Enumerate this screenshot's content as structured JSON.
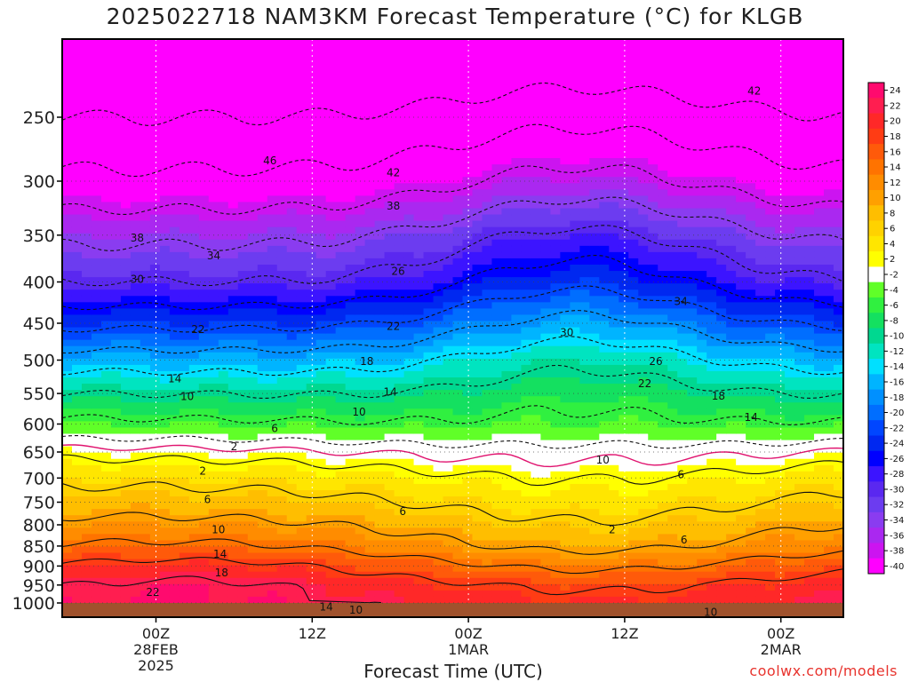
{
  "chart_data": {
    "type": "heatmap",
    "title": "2025022718 NAM3KM Forecast Temperature (°C) for KLGB",
    "xlabel": "Forecast Time (UTC)",
    "ylabel": "",
    "credit": "coolwx.com/models",
    "y_scale": "log",
    "y_axis": {
      "ticks": [
        250,
        300,
        350,
        400,
        450,
        500,
        550,
        600,
        650,
        700,
        750,
        800,
        850,
        900,
        950,
        1000
      ],
      "range": [
        200,
        1000
      ],
      "inverted": true
    },
    "x_axis": {
      "range_hours": [
        -6,
        44
      ],
      "ticks": [
        {
          "hour": 0,
          "lines": [
            "00Z",
            "28FEB",
            "2025"
          ]
        },
        {
          "hour": 10,
          "lines": [
            "12Z"
          ]
        },
        {
          "hour": 20,
          "lines": [
            "00Z",
            "1MAR"
          ]
        },
        {
          "hour": 30,
          "lines": [
            "12Z"
          ]
        },
        {
          "hour": 40,
          "lines": [
            "00Z",
            "2MAR"
          ]
        }
      ]
    },
    "grid": true,
    "colorbar": {
      "levels": [
        24,
        22,
        20,
        18,
        16,
        14,
        12,
        10,
        8,
        6,
        4,
        2,
        -2,
        -4,
        -6,
        -8,
        -10,
        -12,
        -14,
        -16,
        -18,
        -20,
        -22,
        -24,
        -26,
        -28,
        -30,
        -32,
        -34,
        -36,
        -38,
        -40
      ],
      "colors": [
        "#ff0a6e",
        "#ff1e50",
        "#ff2828",
        "#ff3c14",
        "#ff5a0a",
        "#ff7300",
        "#ff8c00",
        "#ffa000",
        "#ffbe00",
        "#ffd200",
        "#ffe600",
        "#ffff00",
        "#ffffff",
        "#60ff28",
        "#30f040",
        "#14e060",
        "#00d890",
        "#00e4c0",
        "#00e0ff",
        "#00b4ff",
        "#0090ff",
        "#006eff",
        "#0046ff",
        "#0028f0",
        "#0000ff",
        "#3c14ff",
        "#5a28f0",
        "#6c3cf0",
        "#8a3cf0",
        "#aa28f0",
        "#cc14f0",
        "#ff00ff"
      ],
      "placement": "right"
    },
    "profile": {
      "pressure": [
        200,
        250,
        300,
        350,
        400,
        450,
        500,
        550,
        600,
        650,
        700,
        750,
        800,
        850,
        900,
        950,
        1000
      ],
      "base_temp": [
        -52,
        -46,
        -41,
        -35,
        -30,
        -23,
        -16,
        -10,
        -5,
        1,
        5,
        8,
        11,
        14,
        18,
        21,
        22
      ]
    },
    "contour_labels": [
      {
        "text": "46",
        "hour": 7.3,
        "p": 283
      },
      {
        "text": "42",
        "hour": 15.2,
        "p": 293
      },
      {
        "text": "42",
        "hour": 38.3,
        "p": 232
      },
      {
        "text": "38",
        "hour": 15.2,
        "p": 322
      },
      {
        "text": "38",
        "hour": -1.2,
        "p": 353
      },
      {
        "text": "34",
        "hour": 3.7,
        "p": 371
      },
      {
        "text": "34",
        "hour": 33.6,
        "p": 423
      },
      {
        "text": "30",
        "hour": -1.2,
        "p": 397
      },
      {
        "text": "30",
        "hour": 26.3,
        "p": 462
      },
      {
        "text": "26",
        "hour": 15.5,
        "p": 388
      },
      {
        "text": "26",
        "hour": 32.0,
        "p": 502
      },
      {
        "text": "22",
        "hour": 2.7,
        "p": 458
      },
      {
        "text": "22",
        "hour": 15.2,
        "p": 454
      },
      {
        "text": "22",
        "hour": 31.3,
        "p": 535
      },
      {
        "text": "18",
        "hour": 13.5,
        "p": 502
      },
      {
        "text": "18",
        "hour": 36.0,
        "p": 554
      },
      {
        "text": "14",
        "hour": 1.2,
        "p": 527
      },
      {
        "text": "14",
        "hour": 15.0,
        "p": 548
      },
      {
        "text": "14",
        "hour": 38.1,
        "p": 589
      },
      {
        "text": "10",
        "hour": 2.0,
        "p": 555
      },
      {
        "text": "10",
        "hour": 13.0,
        "p": 580
      },
      {
        "text": "10",
        "hour": 28.6,
        "p": 665
      },
      {
        "text": "6",
        "hour": 7.6,
        "p": 608
      },
      {
        "text": "6",
        "hour": 33.6,
        "p": 693
      },
      {
        "text": "2",
        "hour": 5.0,
        "p": 640
      },
      {
        "text": "2",
        "hour": 3.0,
        "p": 686
      },
      {
        "text": "6",
        "hour": 3.3,
        "p": 744
      },
      {
        "text": "6",
        "hour": 15.8,
        "p": 770
      },
      {
        "text": "2",
        "hour": 29.2,
        "p": 811
      },
      {
        "text": "6",
        "hour": 33.8,
        "p": 835
      },
      {
        "text": "10",
        "hour": 4.0,
        "p": 811
      },
      {
        "text": "14",
        "hour": 4.1,
        "p": 870
      },
      {
        "text": "18",
        "hour": 4.2,
        "p": 917
      },
      {
        "text": "22",
        "hour": -0.2,
        "p": 970
      },
      {
        "text": "14",
        "hour": 10.9,
        "p": 1011
      },
      {
        "text": "10",
        "hour": 12.8,
        "p": 1021
      },
      {
        "text": "10",
        "hour": 35.5,
        "p": 1027
      }
    ]
  }
}
